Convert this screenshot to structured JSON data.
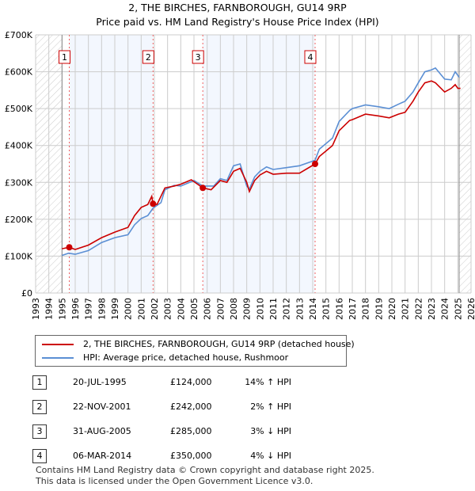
{
  "title": "2, THE BIRCHES, FARNBOROUGH, GU14 9RP",
  "subtitle": "Price paid vs. HM Land Registry's House Price Index (HPI)",
  "chart_data": {
    "type": "line",
    "xlim": [
      1993,
      2026
    ],
    "ylim": [
      0,
      700000
    ],
    "x_ticks": [
      "1993",
      "1994",
      "1995",
      "1996",
      "1997",
      "1998",
      "1999",
      "2000",
      "2001",
      "2002",
      "2003",
      "2004",
      "2005",
      "2006",
      "2007",
      "2008",
      "2009",
      "2010",
      "2011",
      "2012",
      "2013",
      "2014",
      "2015",
      "2016",
      "2017",
      "2018",
      "2019",
      "2020",
      "2021",
      "2022",
      "2023",
      "2024",
      "2025",
      "2026"
    ],
    "y_ticks": [
      {
        "v": 0,
        "label": "£0"
      },
      {
        "v": 100000,
        "label": "£100K"
      },
      {
        "v": 200000,
        "label": "£200K"
      },
      {
        "v": 300000,
        "label": "£300K"
      },
      {
        "v": 400000,
        "label": "£400K"
      },
      {
        "v": 500000,
        "label": "£500K"
      },
      {
        "v": 600000,
        "label": "£600K"
      },
      {
        "v": 700000,
        "label": "£700K"
      }
    ],
    "series": [
      {
        "name": "2, THE BIRCHES, FARNBOROUGH, GU14 9RP (detached house)",
        "color": "#cc0000",
        "x": [
          1995.0,
          1995.55,
          1996,
          1997,
          1998,
          1999,
          2000,
          2000.5,
          2001,
          2001.5,
          2001.8,
          2001.9,
          2002.2,
          2002.8,
          2003.5,
          2004,
          2004.8,
          2005.67,
          2006.3,
          2007,
          2007.5,
          2008,
          2008.5,
          2009,
          2009.2,
          2009.6,
          2010,
          2010.5,
          2011,
          2012,
          2013,
          2014.18,
          2014.5,
          2015,
          2015.5,
          2016,
          2016.8,
          2017,
          2018,
          2019,
          2019.8,
          2020.5,
          2021,
          2021.6,
          2022,
          2022.5,
          2023,
          2023.3,
          2024,
          2024.5,
          2024.8,
          2025,
          2025.2
        ],
        "y": [
          120000,
          124000,
          118000,
          130000,
          150000,
          165000,
          178000,
          210000,
          232000,
          240000,
          262000,
          242000,
          240000,
          285000,
          290000,
          295000,
          307000,
          285000,
          280000,
          305000,
          300000,
          330000,
          338000,
          300000,
          275000,
          305000,
          320000,
          330000,
          322000,
          325000,
          325000,
          350000,
          370000,
          385000,
          400000,
          440000,
          468000,
          470000,
          485000,
          480000,
          475000,
          485000,
          490000,
          520000,
          545000,
          570000,
          575000,
          570000,
          545000,
          555000,
          565000,
          555000,
          555000
        ]
      },
      {
        "name": "HPI: Average price, detached house, Rushmoor",
        "color": "#5b8fd4",
        "x": [
          1995.0,
          1995.5,
          1996,
          1997,
          1998,
          1999,
          2000,
          2000.5,
          2001,
          2001.5,
          2001.9,
          2002.5,
          2002.8,
          2003.5,
          2004,
          2005,
          2005.67,
          2006.5,
          2007,
          2007.5,
          2008,
          2008.5,
          2009,
          2009.2,
          2009.6,
          2010,
          2010.5,
          2011,
          2012,
          2013,
          2014.18,
          2014.5,
          2015,
          2015.5,
          2016,
          2016.8,
          2017,
          2018,
          2019,
          2019.8,
          2020.5,
          2021,
          2021.6,
          2022,
          2022.5,
          2023,
          2023.3,
          2024,
          2024.5,
          2024.8,
          2025.1
        ],
        "y": [
          102000,
          108000,
          105000,
          115000,
          137000,
          150000,
          158000,
          185000,
          202000,
          210000,
          230000,
          245000,
          280000,
          292000,
          290000,
          305000,
          290000,
          290000,
          310000,
          305000,
          345000,
          350000,
          290000,
          282000,
          315000,
          330000,
          342000,
          335000,
          340000,
          345000,
          360000,
          390000,
          405000,
          420000,
          465000,
          495000,
          500000,
          510000,
          505000,
          500000,
          512000,
          520000,
          545000,
          570000,
          600000,
          605000,
          610000,
          580000,
          578000,
          600000,
          585000
        ]
      }
    ],
    "sales": [
      {
        "n": "1",
        "x": 1995.55,
        "y": 124000
      },
      {
        "n": "2",
        "x": 2001.9,
        "y": 242000
      },
      {
        "n": "3",
        "x": 2005.67,
        "y": 285000
      },
      {
        "n": "4",
        "x": 2014.18,
        "y": 350000
      }
    ],
    "data_end": 2025.1
  },
  "legend": [
    "2, THE BIRCHES, FARNBOROUGH, GU14 9RP (detached house)",
    "HPI: Average price, detached house, Rushmoor"
  ],
  "table": [
    {
      "n": "1",
      "date": "20-JUL-1995",
      "price": "£124,000",
      "hpi": "14% ↑ HPI"
    },
    {
      "n": "2",
      "date": "22-NOV-2001",
      "price": "£242,000",
      "hpi": "2% ↑ HPI"
    },
    {
      "n": "3",
      "date": "31-AUG-2005",
      "price": "£285,000",
      "hpi": "3% ↓ HPI"
    },
    {
      "n": "4",
      "date": "06-MAR-2014",
      "price": "£350,000",
      "hpi": "4% ↓ HPI"
    }
  ],
  "footer": [
    "Contains HM Land Registry data © Crown copyright and database right 2025.",
    "This data is licensed under the Open Government Licence v3.0."
  ]
}
